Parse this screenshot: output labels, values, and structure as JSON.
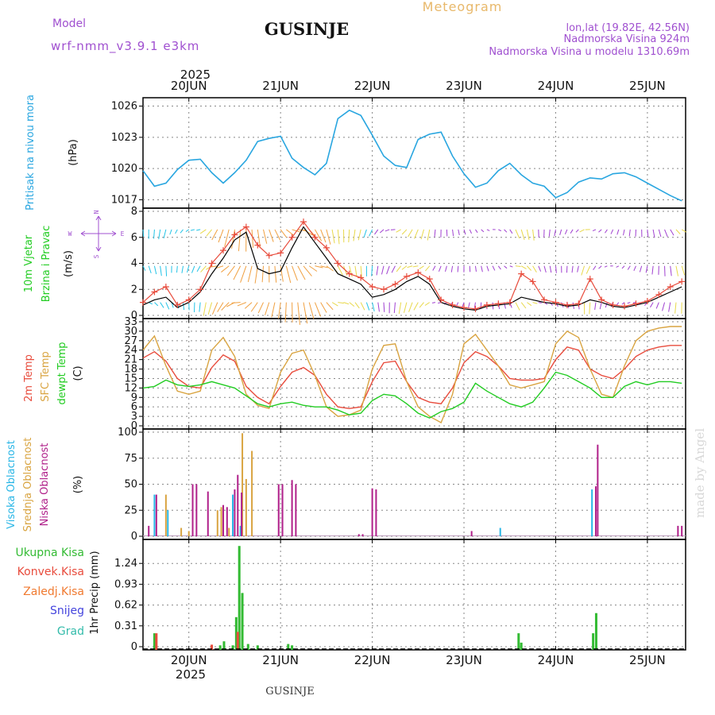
{
  "header": {
    "model_label": "Model",
    "model_name": "wrf-nmm_v3.9.1 e3km",
    "title": "GUSINJE",
    "meteogram_label": "Meteogram",
    "coords": "lon,lat (19.82E, 42.56N)",
    "elevation": "Nadmorska Visina 924m",
    "model_elevation": "Nadmorska Visina u modelu 1310.69m",
    "year_top": "2025",
    "year_bottom": "2025",
    "footer_station": "GUSINJE",
    "watermark": "made by Angel"
  },
  "colors": {
    "pressure": "#29a6e0",
    "temp2m": "#e84c3d",
    "sfc_temp": "#d9a441",
    "dewpt": "#22cc22",
    "high_cloud": "#29b6e6",
    "mid_cloud": "#d9a441",
    "low_cloud": "#b0208a",
    "total_precip": "#33bb33",
    "conv_precip": "#e84c3d",
    "freezing": "#f07a30",
    "snow": "#4444dd",
    "hail": "#33bbaa",
    "wind_model": "#e84c3d",
    "wind_obs": "#000000",
    "model_label_color": "#a050d0"
  },
  "x_axis": {
    "days": [
      "20JUN",
      "21JUN",
      "22JUN",
      "23JUN",
      "24JUN",
      "25JUN"
    ],
    "hours_start": 0,
    "hours_end": 142
  },
  "panels": {
    "pressure": {
      "label": "Pritisak na nivou mora",
      "unit": "(hPa)",
      "ticks": [
        "1017",
        "1020",
        "1023",
        "1026"
      ]
    },
    "wind": {
      "label1": "10m Vjetar",
      "label2": "Brzina i Pravac",
      "unit": "(m/s)",
      "ticks": [
        "0",
        "2",
        "4",
        "6",
        "8"
      ],
      "compass_n": "N",
      "compass_s": "S",
      "compass_w": "W",
      "compass_e": "E"
    },
    "temp": {
      "label1": "2m Temp",
      "label2": "SFC Temp",
      "label3": "dewpt Temp",
      "unit": "(C)",
      "ticks": [
        "0",
        "3",
        "6",
        "9",
        "12",
        "15",
        "18",
        "21",
        "24",
        "27",
        "30",
        "33"
      ]
    },
    "cloud": {
      "label1": "Visoka Oblacnost",
      "label2": "Srednja Oblacnost",
      "label3": "Niska Oblacnost",
      "unit": "(%)",
      "ticks": [
        "0",
        "25",
        "50",
        "75",
        "100"
      ]
    },
    "precip": {
      "legend": [
        "Ukupna Kisa",
        "Konvek.Kisa",
        "Zaledj.Kisa",
        "Snijeg",
        "Grad"
      ],
      "unit": "1hr Precip (mm)",
      "ticks": [
        "0",
        "0.31",
        "0.62",
        "0.93",
        "1.24"
      ]
    }
  },
  "chart_data": [
    {
      "type": "line",
      "name": "pressure",
      "ylim": [
        1016.5,
        1026.5
      ],
      "x": [
        0,
        3,
        6,
        9,
        12,
        15,
        18,
        21,
        24,
        27,
        30,
        33,
        36,
        39,
        42,
        45,
        48,
        51,
        54,
        57,
        60,
        63,
        66,
        69,
        72,
        75,
        78,
        81,
        84,
        87,
        90,
        93,
        96,
        99,
        102,
        105,
        108,
        111,
        114,
        117,
        120,
        123,
        126,
        129,
        132,
        135,
        138,
        141
      ],
      "y": [
        1019.8,
        1018.3,
        1018.6,
        1019.9,
        1020.8,
        1020.9,
        1019.6,
        1018.6,
        1019.6,
        1020.8,
        1022.6,
        1022.9,
        1023.1,
        1021.0,
        1020.1,
        1019.4,
        1020.5,
        1024.8,
        1025.6,
        1025.1,
        1023.2,
        1021.2,
        1020.3,
        1020.1,
        1022.8,
        1023.3,
        1023.5,
        1021.2,
        1019.5,
        1018.2,
        1018.6,
        1019.8,
        1020.5,
        1019.4,
        1018.6,
        1018.3,
        1017.2,
        1017.7,
        1018.7,
        1019.1,
        1019.0,
        1019.5,
        1019.6,
        1019.2,
        1018.6,
        1018.0,
        1017.4,
        1016.9
      ]
    },
    {
      "type": "line",
      "name": "wind_speed",
      "ylim": [
        0,
        8
      ],
      "x": [
        0,
        3,
        6,
        9,
        12,
        15,
        18,
        21,
        24,
        27,
        30,
        33,
        36,
        39,
        42,
        45,
        48,
        51,
        54,
        57,
        60,
        63,
        66,
        69,
        72,
        75,
        78,
        81,
        84,
        87,
        90,
        93,
        96,
        99,
        102,
        105,
        108,
        111,
        114,
        117,
        120,
        123,
        126,
        129,
        132,
        135,
        138,
        141
      ],
      "series": [
        {
          "values": [
            1.0,
            1.8,
            2.2,
            0.8,
            1.2,
            2.0,
            4.0,
            5.0,
            6.2,
            6.8,
            5.4,
            4.6,
            4.8,
            6.0,
            7.2,
            6.0,
            5.2,
            4.0,
            3.2,
            2.9,
            2.2,
            2.0,
            2.4,
            3.0,
            3.3,
            2.8,
            1.2,
            0.8,
            0.6,
            0.5,
            0.8,
            0.9,
            1.0,
            3.2,
            2.6,
            1.2,
            1.0,
            0.8,
            0.9,
            2.8,
            1.2,
            0.8,
            0.7,
            0.9,
            1.1,
            1.6,
            2.2,
            2.6
          ]
        },
        {
          "values": [
            0.8,
            1.2,
            1.4,
            0.6,
            1.0,
            1.8,
            3.2,
            4.4,
            5.8,
            6.4,
            3.6,
            3.2,
            3.4,
            5.2,
            6.8,
            5.6,
            4.4,
            3.2,
            2.8,
            2.4,
            1.4,
            1.6,
            2.0,
            2.6,
            3.0,
            2.4,
            1.0,
            0.7,
            0.5,
            0.4,
            0.7,
            0.8,
            0.9,
            1.4,
            1.2,
            1.0,
            0.9,
            0.7,
            0.8,
            1.2,
            1.0,
            0.7,
            0.6,
            0.8,
            1.0,
            1.4,
            1.8,
            2.2
          ]
        }
      ]
    },
    {
      "type": "line",
      "name": "temperature",
      "ylim": [
        0,
        33
      ],
      "x": [
        0,
        3,
        6,
        9,
        12,
        15,
        18,
        21,
        24,
        27,
        30,
        33,
        36,
        39,
        42,
        45,
        48,
        51,
        54,
        57,
        60,
        63,
        66,
        69,
        72,
        75,
        78,
        81,
        84,
        87,
        90,
        93,
        96,
        99,
        102,
        105,
        108,
        111,
        114,
        117,
        120,
        123,
        126,
        129,
        132,
        135,
        138,
        141
      ],
      "series": [
        {
          "values": [
            21.5,
            23.5,
            20.5,
            15.0,
            12.5,
            12.0,
            18.5,
            22.5,
            20.5,
            12.5,
            9.0,
            7.0,
            12.5,
            17.0,
            18.5,
            16.0,
            10.0,
            6.0,
            5.5,
            6.0,
            14.0,
            20.0,
            20.5,
            14.0,
            9.0,
            7.5,
            7.0,
            12.0,
            20.0,
            23.5,
            22.0,
            19.0,
            15.0,
            14.5,
            14.5,
            15.0,
            21.0,
            25.0,
            24.0,
            18.0,
            16.0,
            15.0,
            18.0,
            22.0,
            24.0,
            25.0,
            25.5,
            25.5
          ]
        },
        {
          "values": [
            24.0,
            28.5,
            19.0,
            11.0,
            10.0,
            11.0,
            24.0,
            28.0,
            22.0,
            10.0,
            6.5,
            5.5,
            17.0,
            23.0,
            24.0,
            16.0,
            6.0,
            3.0,
            3.5,
            5.0,
            18.0,
            25.5,
            26.0,
            14.0,
            6.0,
            3.0,
            1.0,
            10.0,
            26.0,
            29.0,
            24.0,
            19.0,
            13.0,
            12.0,
            13.0,
            14.0,
            26.0,
            30.0,
            28.0,
            18.0,
            10.0,
            9.0,
            19.0,
            27.0,
            30.0,
            31.0,
            31.5,
            31.5
          ]
        },
        {
          "values": [
            12.0,
            12.5,
            14.5,
            13.0,
            12.5,
            13.0,
            14.0,
            13.0,
            12.0,
            9.5,
            7.0,
            6.0,
            7.0,
            7.5,
            6.5,
            6.0,
            6.0,
            5.0,
            3.5,
            4.0,
            8.0,
            10.0,
            9.5,
            7.0,
            4.0,
            2.5,
            4.5,
            5.5,
            7.5,
            13.5,
            11.0,
            9.0,
            7.0,
            6.0,
            7.5,
            12.0,
            17.0,
            16.0,
            14.0,
            12.0,
            9.0,
            9.0,
            12.5,
            14.0,
            13.0,
            14.0,
            14.0,
            13.5
          ]
        }
      ]
    },
    {
      "type": "bar",
      "name": "cloud_cover",
      "ylim": [
        0,
        100
      ],
      "series": [
        {
          "x": [
            3.0,
            6.5,
            23.5,
            25.5,
            93.5,
            117.5
          ],
          "values": [
            40,
            25,
            40,
            10,
            8,
            45
          ]
        },
        {
          "x": [
            6.0,
            10.0,
            12.0,
            19.5,
            20.5,
            22.5,
            26.0,
            27.0,
            28.5
          ],
          "values": [
            40,
            8,
            5,
            25,
            28,
            8,
            99,
            55,
            82
          ]
        },
        {
          "x": [
            1.5,
            3.5,
            13.0,
            14.0,
            17.0,
            21.0,
            22.0,
            24.0,
            24.8,
            25.8,
            35.5,
            36.5,
            39.0,
            40.0,
            56.5,
            57.5,
            60.0,
            61.0,
            86.0,
            118.5,
            119.0,
            140.0,
            141.0
          ],
          "values": [
            10,
            40,
            50,
            50,
            43,
            30,
            28,
            45,
            59,
            42,
            50,
            50,
            54,
            50,
            2,
            2,
            46,
            45,
            5,
            48,
            88,
            10,
            10
          ]
        }
      ]
    },
    {
      "type": "bar",
      "name": "precipitation_1hr",
      "ylim": [
        0,
        1.55
      ],
      "series": [
        {
          "x": [
            3.0,
            20.2,
            21.2,
            23.5,
            24.4,
            25.2,
            26.0,
            27.5,
            30.0,
            38.0,
            39.0,
            98.3,
            99.0,
            117.8,
            118.6
          ],
          "values": [
            0.2,
            0.02,
            0.08,
            0.02,
            0.44,
            1.5,
            0.8,
            0.04,
            0.02,
            0.04,
            0.02,
            0.2,
            0.06,
            0.2,
            0.5
          ]
        },
        {
          "x": [
            3.5,
            18.0,
            24.8
          ],
          "values": [
            0.2,
            0.03,
            0.22
          ]
        }
      ]
    }
  ]
}
